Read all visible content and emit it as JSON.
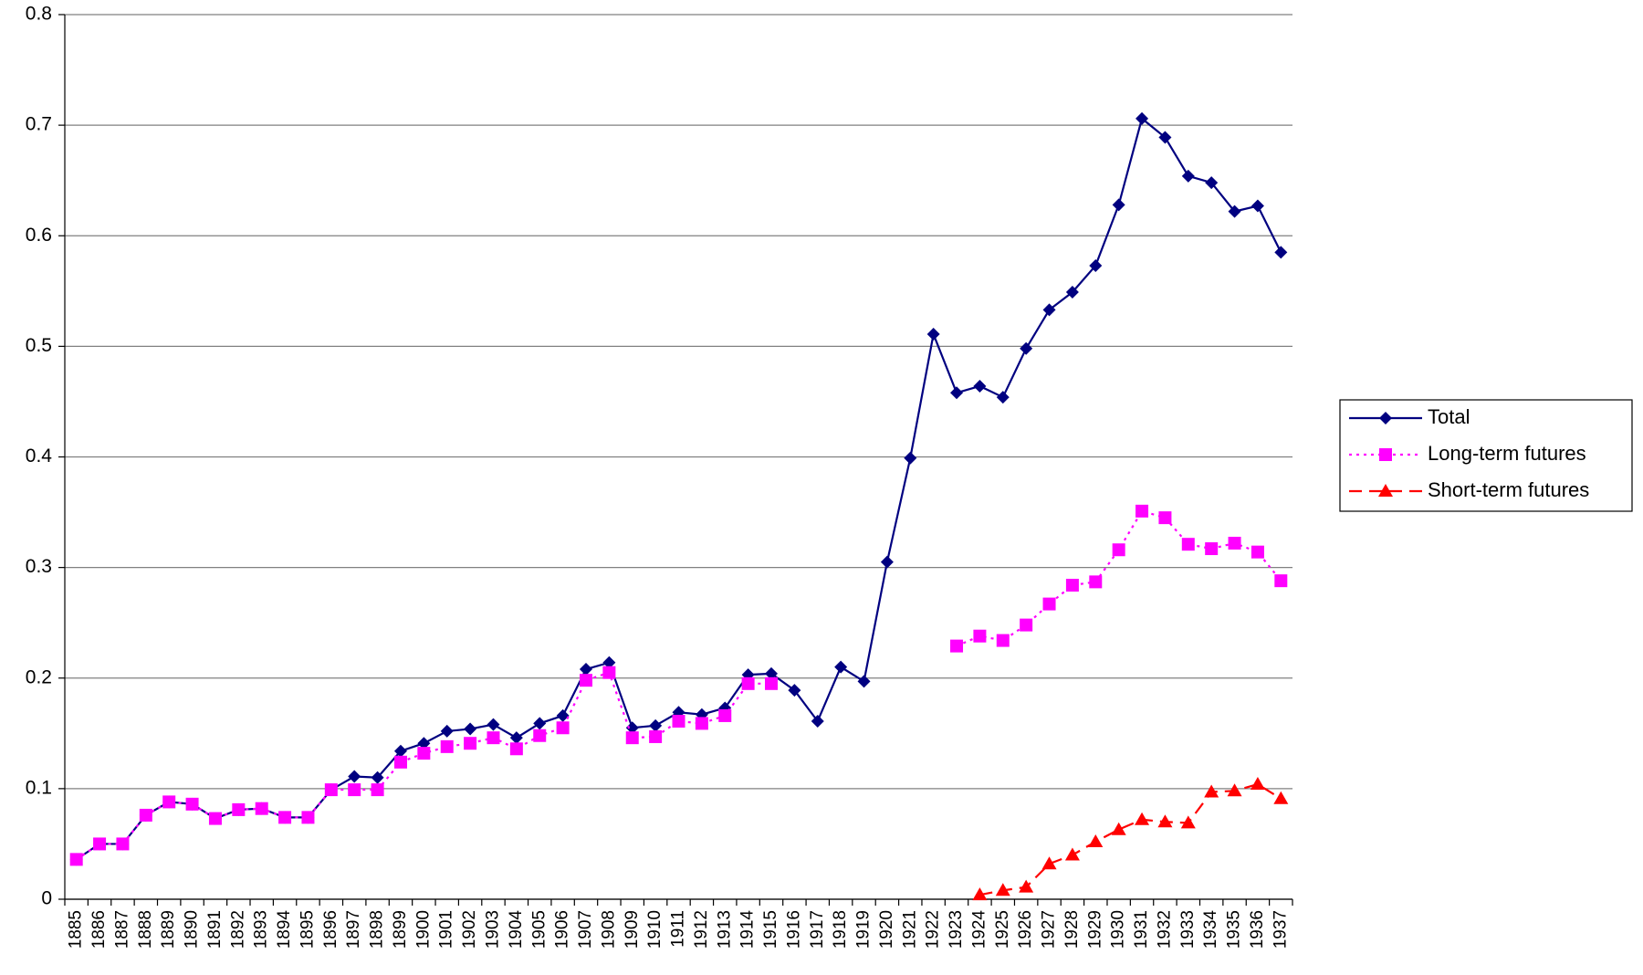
{
  "chart_data": {
    "type": "line",
    "categories": [
      "1885",
      "1886",
      "1887",
      "1888",
      "1889",
      "1890",
      "1891",
      "1892",
      "1893",
      "1894",
      "1895",
      "1896",
      "1897",
      "1898",
      "1899",
      "1900",
      "1901",
      "1902",
      "1903",
      "1904",
      "1905",
      "1906",
      "1907",
      "1908",
      "1909",
      "1910",
      "1911",
      "1912",
      "1913",
      "1914",
      "1915",
      "1916",
      "1917",
      "1918",
      "1919",
      "1920",
      "1921",
      "1922",
      "1923",
      "1924",
      "1925",
      "1926",
      "1927",
      "1928",
      "1929",
      "1930",
      "1931",
      "1932",
      "1933",
      "1934",
      "1935",
      "1936",
      "1937"
    ],
    "series": [
      {
        "name": "Total",
        "color": "#000080",
        "marker": "diamond",
        "line_style": "solid",
        "values": [
          0.036,
          0.05,
          0.05,
          0.076,
          0.088,
          0.086,
          0.073,
          0.081,
          0.082,
          0.074,
          0.074,
          0.099,
          0.111,
          0.11,
          0.134,
          0.141,
          0.152,
          0.154,
          0.158,
          0.146,
          0.159,
          0.166,
          0.208,
          0.214,
          0.155,
          0.157,
          0.169,
          0.167,
          0.173,
          0.203,
          0.204,
          0.189,
          0.161,
          0.21,
          0.197,
          0.305,
          0.399,
          0.511,
          0.458,
          0.464,
          0.454,
          0.498,
          0.533,
          0.549,
          0.573,
          0.628,
          0.706,
          0.689,
          0.654,
          0.648,
          0.622,
          0.627,
          0.585
        ]
      },
      {
        "name": "Long-term futures",
        "color": "#ff00ff",
        "marker": "square",
        "line_style": "dotted",
        "values": [
          0.036,
          0.05,
          0.05,
          0.076,
          0.088,
          0.086,
          0.073,
          0.081,
          0.082,
          0.074,
          0.074,
          0.099,
          0.099,
          0.099,
          0.124,
          0.132,
          0.138,
          0.141,
          0.146,
          0.136,
          0.148,
          0.155,
          0.198,
          0.205,
          0.146,
          0.147,
          0.161,
          0.159,
          0.166,
          0.195,
          0.195,
          null,
          null,
          null,
          null,
          null,
          null,
          null,
          0.229,
          0.238,
          0.234,
          0.248,
          0.267,
          0.284,
          0.287,
          0.316,
          0.351,
          0.345,
          0.321,
          0.317,
          0.322,
          0.314,
          0.288
        ]
      },
      {
        "name": "Short-term futures",
        "color": "#ff0000",
        "marker": "triangle",
        "line_style": "dashed",
        "values": [
          null,
          null,
          null,
          null,
          null,
          null,
          null,
          null,
          null,
          null,
          null,
          null,
          null,
          null,
          null,
          null,
          null,
          null,
          null,
          null,
          null,
          null,
          null,
          null,
          null,
          null,
          null,
          null,
          null,
          null,
          null,
          null,
          null,
          null,
          null,
          null,
          null,
          null,
          null,
          0.004,
          0.008,
          0.011,
          0.032,
          0.04,
          0.052,
          0.063,
          0.072,
          0.07,
          0.069,
          0.097,
          0.098,
          0.104,
          0.091
        ]
      }
    ],
    "ylim": [
      0,
      0.8
    ],
    "yticks": [
      0,
      0.1,
      0.2,
      0.3,
      0.4,
      0.5,
      0.6,
      0.7,
      0.8
    ],
    "grid": true,
    "legend": "right"
  }
}
